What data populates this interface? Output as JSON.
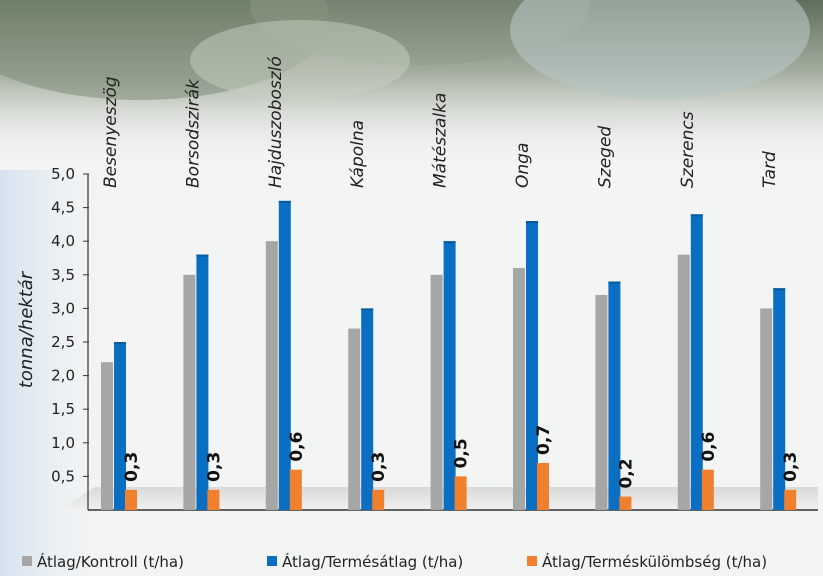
{
  "chart_data": {
    "type": "bar",
    "categories": [
      "Besenyeszög",
      "Borsodszirák",
      "Hajduszoboszló",
      "Kápolna",
      "Mátészalka",
      "Onga",
      "Szeged",
      "Szerencs",
      "Tard"
    ],
    "series": [
      {
        "name": "Átlag/Kontroll (t/ha)",
        "color": "#a6a6a6",
        "values": [
          2.2,
          3.5,
          4.0,
          2.7,
          3.5,
          3.6,
          3.2,
          3.8,
          3.0
        ]
      },
      {
        "name": "Átlag/Termésátlag (t/ha)",
        "color": "#0a6fc2",
        "values": [
          2.5,
          3.8,
          4.6,
          3.0,
          4.0,
          4.3,
          3.4,
          4.4,
          3.3
        ]
      },
      {
        "name": "Átlag/Terméskülömbség (t/ha)",
        "color": "#f07f2e",
        "values": [
          0.3,
          0.3,
          0.6,
          0.3,
          0.5,
          0.7,
          0.2,
          0.6,
          0.3
        ]
      }
    ],
    "difference_labels": [
      "0,3",
      "0,3",
      "0,6",
      "0,3",
      "0,5",
      "0,7",
      "0,2",
      "0,6",
      "0,3"
    ],
    "ylabel": "tonna/hektár",
    "ylim": [
      0,
      5.0
    ],
    "yticks": [
      "0,5",
      "1,0",
      "1,5",
      "2,0",
      "2,5",
      "3,0",
      "3,5",
      "4,0",
      "4,5",
      "5,0"
    ],
    "ytick_values": [
      0.5,
      1.0,
      1.5,
      2.0,
      2.5,
      3.0,
      3.5,
      4.0,
      4.5,
      5.0
    ],
    "legend_position": "bottom",
    "grid": false
  }
}
